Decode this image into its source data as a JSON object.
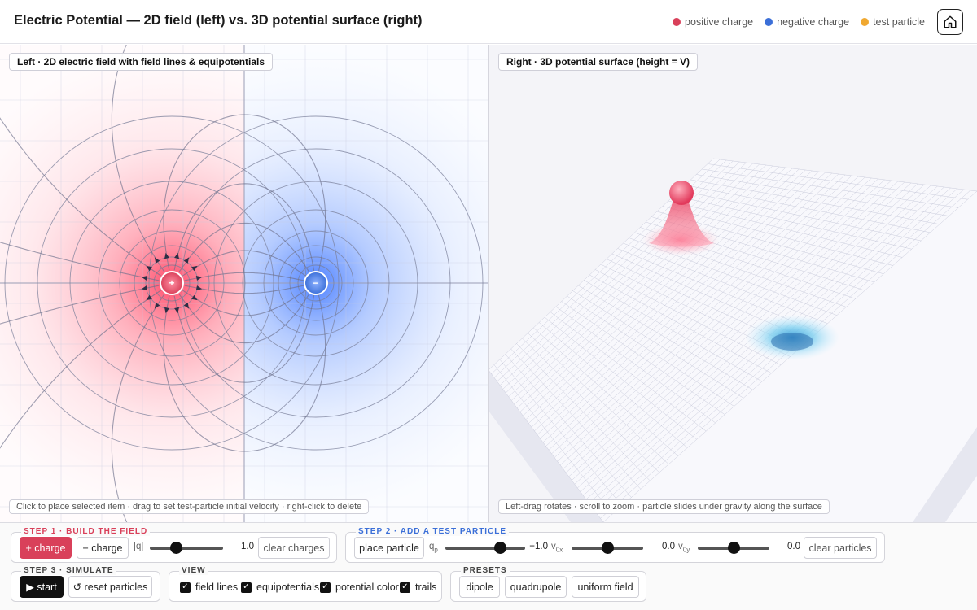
{
  "header": {
    "title": "Electric Potential — 2D field (left) vs. 3D potential surface (right)",
    "legend": [
      {
        "label": "positive charge",
        "color": "#d9405a"
      },
      {
        "label": "negative charge",
        "color": "#3b6fd8"
      },
      {
        "label": "test particle",
        "color": "#f0a830"
      }
    ],
    "home_icon": "home-icon"
  },
  "left_pane": {
    "label": "Left · 2D electric field with field lines & equipotentials",
    "hint": "Click to place selected item · drag to set test-particle initial velocity · right-click to delete"
  },
  "right_pane": {
    "label": "Right · 3D potential surface (height = V)",
    "hint": "Left-drag rotates · scroll to zoom · particle slides under gravity along the surface"
  },
  "charges": [
    {
      "sign": "+",
      "q": 1.0
    },
    {
      "sign": "−",
      "q": -1.0
    }
  ],
  "step1": {
    "title": "STEP 1 · BUILD THE FIELD",
    "title_color": "#d9405a",
    "plus_charge": "+ charge",
    "minus_charge": "− charge",
    "q_label": "|q|",
    "q_value": "1.0",
    "q_fraction": 0.33,
    "clear": "clear charges"
  },
  "step2": {
    "title": "STEP 2 · ADD A TEST PARTICLE",
    "title_color": "#3b6fd8",
    "place": "place particle",
    "qp_label": "q",
    "qp_sub": "p",
    "qp_value": "+1.0",
    "qp_fraction": 0.72,
    "v0x_label": "v",
    "v0x_sub": "0x",
    "v0x_value": "0.0",
    "v0x_fraction": 0.5,
    "v0y_label": "v",
    "v0y_sub": "0y",
    "v0y_value": "0.0",
    "v0y_fraction": 0.5,
    "clear": "clear particles"
  },
  "step3": {
    "title": "STEP 3 · SIMULATE",
    "start": "▶ start",
    "reset": "↺ reset particles"
  },
  "view": {
    "title": "VIEW",
    "options": [
      "field lines",
      "equipotentials",
      "potential color",
      "trails"
    ]
  },
  "presets": {
    "title": "PRESETS",
    "items": [
      "dipole",
      "quadrupole",
      "uniform field"
    ]
  }
}
